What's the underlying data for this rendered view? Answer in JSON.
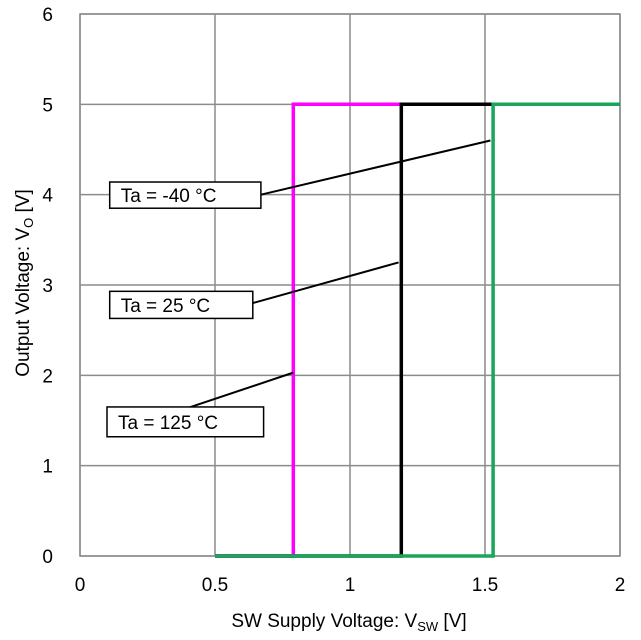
{
  "chart_data": {
    "type": "line",
    "xlabel": {
      "main": "SW Supply Voltage: V",
      "sub": "SW",
      "unit": " [V]"
    },
    "ylabel": {
      "main": "Output Voltage: V",
      "sub": "O",
      "unit": " [V]"
    },
    "xlim": [
      0,
      2
    ],
    "ylim": [
      0,
      6
    ],
    "x_ticks": [
      0,
      0.5,
      1,
      1.5,
      2
    ],
    "x_tick_labels": [
      "0",
      "0.5",
      "1",
      "1.5",
      "2"
    ],
    "y_ticks": [
      0,
      1,
      2,
      3,
      4,
      5,
      6
    ],
    "y_tick_labels": [
      "0",
      "1",
      "2",
      "3",
      "4",
      "5",
      "6"
    ],
    "grid": true,
    "legend": "none",
    "series": [
      {
        "label": "Ta = 125 °C",
        "color": "#ff00ff",
        "x": [
          0.5,
          0.79,
          0.79,
          2.0
        ],
        "y": [
          0,
          0,
          5,
          5
        ]
      },
      {
        "label": "Ta = 25 °C",
        "color": "#000000",
        "x": [
          0.5,
          1.19,
          1.19,
          2.0
        ],
        "y": [
          0,
          0,
          5,
          5
        ]
      },
      {
        "label": "Ta = -40 °C",
        "color": "#1aa65a",
        "x": [
          0.5,
          1.53,
          1.53,
          2.0
        ],
        "y": [
          0,
          0,
          5,
          5
        ]
      }
    ],
    "annotations": [
      {
        "text": "Ta = -40 °C",
        "series": 2,
        "box": [
          0.11,
          3.85,
          0.67,
          4.14
        ],
        "leader_from": [
          0.67,
          4.0
        ],
        "leader_to": [
          1.52,
          4.6
        ]
      },
      {
        "text": "Ta = 25 °C",
        "series": 1,
        "box": [
          0.11,
          2.63,
          0.64,
          2.93
        ],
        "leader_from": [
          0.64,
          2.8
        ],
        "leader_to": [
          1.18,
          3.25
        ]
      },
      {
        "text": "Ta = 125 °C",
        "series": 0,
        "box": [
          0.1,
          1.32,
          0.68,
          1.65
        ],
        "leader_from": [
          0.38,
          1.62
        ],
        "leader_to": [
          0.79,
          2.03
        ]
      }
    ]
  }
}
